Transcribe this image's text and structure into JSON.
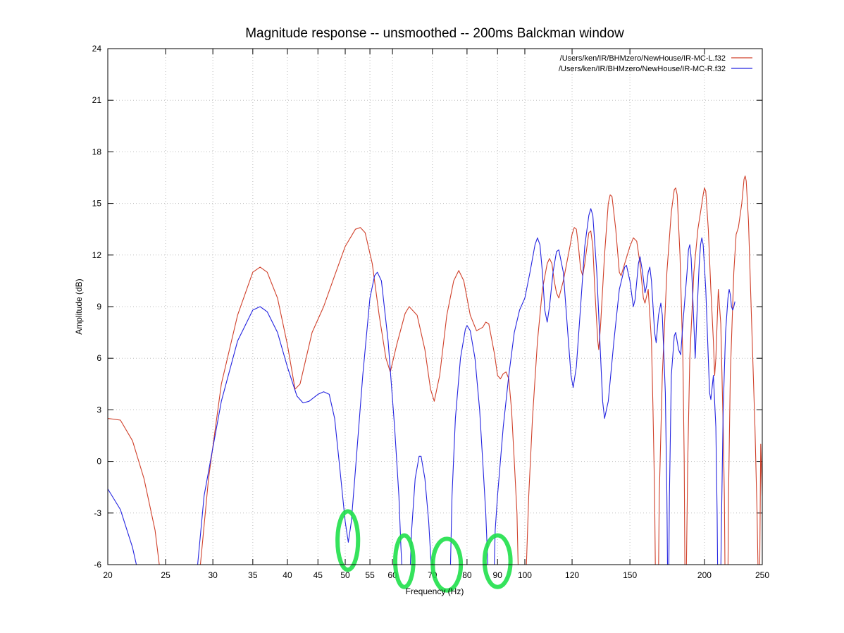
{
  "chart_data": {
    "type": "line",
    "title": "Magnitude response -- unsmoothed -- 200ms Balckman window",
    "xlabel": "Frequency (Hz)",
    "ylabel": "Amplitude (dB)",
    "x_scale": "log",
    "xlim": [
      20,
      250
    ],
    "ylim": [
      -6,
      24
    ],
    "xticks": [
      20,
      25,
      30,
      35,
      40,
      45,
      50,
      55,
      60,
      70,
      80,
      90,
      100,
      120,
      150,
      200,
      250
    ],
    "yticks": [
      -6,
      -3,
      0,
      3,
      6,
      9,
      12,
      15,
      18,
      21,
      24
    ],
    "grid": true,
    "legend_position": "top-right",
    "series": [
      {
        "name": "/Users/ken/IR/BHMzero/NewHouse/IR-MC-L.f32",
        "color": "#d0402a",
        "points": [
          [
            20,
            2.5
          ],
          [
            21,
            2.4
          ],
          [
            22,
            1.2
          ],
          [
            23,
            -1
          ],
          [
            24,
            -4
          ],
          [
            24.5,
            -6.5
          ],
          [
            28.5,
            -6.5
          ],
          [
            29.5,
            -1
          ],
          [
            31,
            4.5
          ],
          [
            33,
            8.5
          ],
          [
            35,
            11
          ],
          [
            36,
            11.3
          ],
          [
            37,
            11
          ],
          [
            38.5,
            9.5
          ],
          [
            40,
            6.8
          ],
          [
            41.2,
            4.2
          ],
          [
            42,
            4.5
          ],
          [
            44,
            7.5
          ],
          [
            46,
            9
          ],
          [
            48,
            10.8
          ],
          [
            50,
            12.5
          ],
          [
            52,
            13.5
          ],
          [
            53,
            13.6
          ],
          [
            54,
            13.3
          ],
          [
            55.5,
            11.5
          ],
          [
            57,
            8.5
          ],
          [
            58.5,
            6
          ],
          [
            59.5,
            5.2
          ],
          [
            61,
            6.8
          ],
          [
            63,
            8.6
          ],
          [
            64,
            9
          ],
          [
            66,
            8.5
          ],
          [
            68,
            6.5
          ],
          [
            69.5,
            4.2
          ],
          [
            70.5,
            3.5
          ],
          [
            72,
            5
          ],
          [
            74,
            8.5
          ],
          [
            76,
            10.5
          ],
          [
            77.5,
            11.1
          ],
          [
            79,
            10.5
          ],
          [
            81,
            8.5
          ],
          [
            83,
            7.6
          ],
          [
            85,
            7.8
          ],
          [
            86,
            8.1
          ],
          [
            87,
            8
          ],
          [
            89,
            6.2
          ],
          [
            90,
            5
          ],
          [
            91,
            4.8
          ],
          [
            92,
            5.1
          ],
          [
            93,
            5.2
          ],
          [
            94,
            4.8
          ],
          [
            95,
            3
          ],
          [
            96,
            0
          ],
          [
            97,
            -3
          ],
          [
            97.5,
            -6.5
          ],
          [
            100.5,
            -6.5
          ],
          [
            101.5,
            -2
          ],
          [
            103,
            2.5
          ],
          [
            105,
            7
          ],
          [
            107,
            10
          ],
          [
            109,
            11.5
          ],
          [
            110,
            11.8
          ],
          [
            111,
            11.5
          ],
          [
            112,
            10.5
          ],
          [
            113,
            9.8
          ],
          [
            114,
            9.5
          ],
          [
            116,
            10.5
          ],
          [
            119,
            12.5
          ],
          [
            120,
            13.2
          ],
          [
            121,
            13.6
          ],
          [
            122,
            13.5
          ],
          [
            123,
            12.5
          ],
          [
            124,
            11.2
          ],
          [
            125,
            10.8
          ],
          [
            126,
            11.5
          ],
          [
            128,
            13.3
          ],
          [
            129,
            13.4
          ],
          [
            130,
            12.5
          ],
          [
            131,
            10
          ],
          [
            132.5,
            7
          ],
          [
            133,
            6.5
          ],
          [
            134,
            8
          ],
          [
            136,
            12
          ],
          [
            138,
            15
          ],
          [
            139,
            15.5
          ],
          [
            140,
            15.4
          ],
          [
            142,
            13.5
          ],
          [
            144,
            11
          ],
          [
            145,
            10.8
          ],
          [
            147,
            11.5
          ],
          [
            150,
            12.5
          ],
          [
            152,
            13
          ],
          [
            154,
            12.8
          ],
          [
            156,
            11.5
          ],
          [
            158,
            9.5
          ],
          [
            159,
            9.2
          ],
          [
            161,
            10
          ],
          [
            163,
            7
          ],
          [
            164,
            3
          ],
          [
            165,
            -2
          ],
          [
            165.5,
            -6.5
          ],
          [
            167.5,
            -6.5
          ],
          [
            168,
            -2
          ],
          [
            170,
            5
          ],
          [
            173,
            11
          ],
          [
            176,
            14.5
          ],
          [
            178,
            15.8
          ],
          [
            179,
            15.9
          ],
          [
            180,
            15.5
          ],
          [
            182,
            12
          ],
          [
            184,
            6
          ],
          [
            185,
            0
          ],
          [
            185.5,
            -6.5
          ],
          [
            186.5,
            -6.5
          ],
          [
            187.5,
            0
          ],
          [
            189,
            6
          ],
          [
            192,
            11
          ],
          [
            195,
            13.5
          ],
          [
            197,
            14.5
          ],
          [
            199,
            15.5
          ],
          [
            200,
            15.9
          ],
          [
            201,
            15.7
          ],
          [
            203,
            13.5
          ],
          [
            205,
            10
          ],
          [
            207,
            7
          ],
          [
            208,
            5
          ],
          [
            209,
            6
          ],
          [
            211,
            10
          ],
          [
            213,
            8
          ],
          [
            215,
            2
          ],
          [
            216,
            -2
          ],
          [
            216.5,
            -6.5
          ],
          [
            219,
            -6.5
          ],
          [
            219.5,
            -2
          ],
          [
            221,
            5
          ],
          [
            224,
            11
          ],
          [
            226,
            13.2
          ],
          [
            228,
            13.6
          ],
          [
            231,
            15
          ],
          [
            233,
            16.4
          ],
          [
            234,
            16.6
          ],
          [
            235,
            16.3
          ],
          [
            237,
            14
          ],
          [
            239,
            10
          ],
          [
            241,
            6
          ],
          [
            243,
            2
          ],
          [
            245,
            -3
          ],
          [
            246,
            -6.5
          ],
          [
            247.5,
            -6.5
          ],
          [
            248.5,
            1
          ],
          [
            250,
            -2
          ]
        ]
      },
      {
        "name": "/Users/ken/IR/BHMzero/NewHouse/IR-MC-R.f32",
        "color": "#2424e0",
        "points": [
          [
            20,
            -1.6
          ],
          [
            21,
            -2.8
          ],
          [
            22,
            -5
          ],
          [
            22.5,
            -6.5
          ],
          [
            28.2,
            -6.5
          ],
          [
            29,
            -2
          ],
          [
            31,
            3.5
          ],
          [
            33,
            7
          ],
          [
            35,
            8.8
          ],
          [
            36,
            9
          ],
          [
            37,
            8.7
          ],
          [
            38.5,
            7.5
          ],
          [
            40,
            5.5
          ],
          [
            41.5,
            3.8
          ],
          [
            42.5,
            3.4
          ],
          [
            43.5,
            3.5
          ],
          [
            45,
            3.9
          ],
          [
            46,
            4.05
          ],
          [
            47,
            3.9
          ],
          [
            48,
            2.5
          ],
          [
            49,
            -0.5
          ],
          [
            50,
            -3.5
          ],
          [
            50.6,
            -4.7
          ],
          [
            51.2,
            -3.5
          ],
          [
            52,
            -0.5
          ],
          [
            53.5,
            5
          ],
          [
            55,
            9.5
          ],
          [
            56,
            10.8
          ],
          [
            56.6,
            11
          ],
          [
            57.5,
            10.5
          ],
          [
            59,
            7
          ],
          [
            60.5,
            2
          ],
          [
            61.5,
            -2
          ],
          [
            62,
            -5
          ],
          [
            62.3,
            -6.5
          ],
          [
            64.2,
            -6.5
          ],
          [
            64.6,
            -4
          ],
          [
            65.5,
            -1
          ],
          [
            66.5,
            0.3
          ],
          [
            67,
            0.3
          ],
          [
            68,
            -1
          ],
          [
            69,
            -3.5
          ],
          [
            69.8,
            -6.5
          ],
          [
            75,
            -6.5
          ],
          [
            75.5,
            -2
          ],
          [
            76.5,
            2.5
          ],
          [
            78,
            6
          ],
          [
            79.5,
            7.7
          ],
          [
            80,
            7.9
          ],
          [
            81,
            7.6
          ],
          [
            82.5,
            6
          ],
          [
            84,
            3
          ],
          [
            85,
            0
          ],
          [
            86,
            -3
          ],
          [
            86.8,
            -6.5
          ],
          [
            88.8,
            -6.5
          ],
          [
            89.2,
            -4
          ],
          [
            90,
            -2
          ],
          [
            92,
            2
          ],
          [
            94,
            5
          ],
          [
            96,
            7.5
          ],
          [
            98,
            8.8
          ],
          [
            100,
            9.5
          ],
          [
            102,
            11
          ],
          [
            104,
            12.6
          ],
          [
            105,
            13
          ],
          [
            106,
            12.6
          ],
          [
            107,
            11
          ],
          [
            108,
            8.8
          ],
          [
            109,
            8.1
          ],
          [
            110,
            9
          ],
          [
            111.5,
            11
          ],
          [
            113,
            12.2
          ],
          [
            114,
            12.3
          ],
          [
            116,
            11
          ],
          [
            118,
            7.5
          ],
          [
            119.5,
            5
          ],
          [
            120.5,
            4.3
          ],
          [
            122,
            5.5
          ],
          [
            124,
            9
          ],
          [
            126,
            12.5
          ],
          [
            128,
            14.3
          ],
          [
            129,
            14.7
          ],
          [
            130,
            14.3
          ],
          [
            132,
            11
          ],
          [
            134,
            6
          ],
          [
            135,
            3.5
          ],
          [
            136,
            2.5
          ],
          [
            138,
            3.5
          ],
          [
            141,
            7
          ],
          [
            144,
            10
          ],
          [
            147,
            11.3
          ],
          [
            148,
            11.4
          ],
          [
            150,
            10.5
          ],
          [
            152,
            9
          ],
          [
            153,
            9.4
          ],
          [
            155,
            11.5
          ],
          [
            156,
            11.9
          ],
          [
            157.5,
            11
          ],
          [
            159,
            9.8
          ],
          [
            160,
            10.2
          ],
          [
            161,
            11
          ],
          [
            162,
            11.3
          ],
          [
            163,
            10.5
          ],
          [
            165,
            7.5
          ],
          [
            166,
            6.9
          ],
          [
            167.5,
            8.5
          ],
          [
            169,
            9.2
          ],
          [
            170,
            8.5
          ],
          [
            172,
            4
          ],
          [
            173,
            -2
          ],
          [
            173.5,
            -6.5
          ],
          [
            174.3,
            -6.5
          ],
          [
            174.7,
            -2
          ],
          [
            176,
            5
          ],
          [
            178,
            7.3
          ],
          [
            179,
            7.5
          ],
          [
            181,
            6.5
          ],
          [
            182.5,
            6.2
          ],
          [
            184,
            8
          ],
          [
            187,
            11
          ],
          [
            188,
            12.3
          ],
          [
            189,
            12.6
          ],
          [
            190,
            11.8
          ],
          [
            192,
            8
          ],
          [
            193,
            6
          ],
          [
            194,
            8
          ],
          [
            196,
            11.5
          ],
          [
            197,
            12.6
          ],
          [
            198,
            13
          ],
          [
            199,
            12.6
          ],
          [
            201,
            10
          ],
          [
            203,
            6
          ],
          [
            204,
            4
          ],
          [
            205,
            3.6
          ],
          [
            207,
            5
          ],
          [
            209,
            2
          ],
          [
            210,
            -3
          ],
          [
            210.5,
            -6.5
          ],
          [
            213,
            -6.5
          ],
          [
            213.5,
            -4
          ],
          [
            215,
            3
          ],
          [
            217,
            7.5
          ],
          [
            219,
            9.5
          ],
          [
            220,
            10
          ],
          [
            221,
            9.7
          ],
          [
            222,
            9
          ],
          [
            223,
            8.8
          ],
          [
            224,
            9
          ],
          [
            225,
            9.3
          ]
        ]
      }
    ],
    "annotations": [
      {
        "type": "ellipse",
        "color": "#1fe04a",
        "cx": 50.5,
        "cy": -4.6,
        "rx_hz": 2.0,
        "ry_db": 1.7
      },
      {
        "type": "ellipse",
        "color": "#1fe04a",
        "cx": 62.8,
        "cy": -5.8,
        "rx_hz": 2.2,
        "ry_db": 1.5
      },
      {
        "type": "ellipse",
        "color": "#1fe04a",
        "cx": 74.0,
        "cy": -6.0,
        "rx_hz": 4.0,
        "ry_db": 1.5
      },
      {
        "type": "ellipse",
        "color": "#1fe04a",
        "cx": 90.0,
        "cy": -5.8,
        "rx_hz": 4.5,
        "ry_db": 1.5
      }
    ]
  }
}
